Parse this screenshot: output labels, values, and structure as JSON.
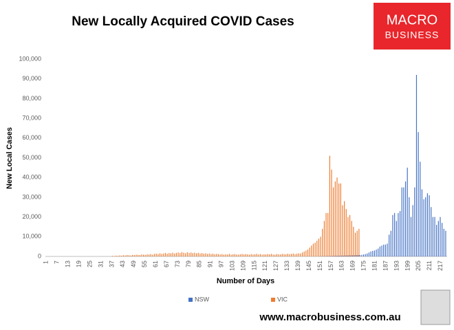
{
  "chart_data": {
    "type": "bar",
    "title": "New Locally Acquired COVID Cases",
    "logo": {
      "line1": "MACRO",
      "line2": "BUSINESS"
    },
    "footer": "www.macrobusiness.com.au",
    "y_label": "New Local Cases",
    "x_label": "Number of Days",
    "legend": "bottom",
    "grid": false,
    "ylim": [
      0,
      100000
    ],
    "yticks": [
      0,
      {
        "value": 10000,
        "label": "10,000"
      },
      {
        "value": 20000,
        "label": "20,000"
      },
      {
        "value": 30000,
        "label": "30,000"
      },
      {
        "value": 40000,
        "label": "40,000"
      },
      {
        "value": 50000,
        "label": "50,000"
      },
      {
        "value": 60000,
        "label": "60,000"
      },
      {
        "value": 70000,
        "label": "70,000"
      },
      {
        "value": 80000,
        "label": "80,000"
      },
      {
        "value": 90000,
        "label": "90,000"
      },
      {
        "value": 100000,
        "label": "100,000"
      }
    ],
    "categories": [
      1,
      null,
      null,
      null,
      null,
      null,
      7,
      null,
      null,
      null,
      null,
      null,
      13,
      null,
      null,
      null,
      null,
      null,
      19,
      null,
      null,
      null,
      null,
      null,
      25,
      null,
      null,
      null,
      null,
      null,
      31,
      null,
      null,
      null,
      null,
      null,
      37,
      null,
      null,
      null,
      null,
      null,
      43,
      null,
      null,
      null,
      null,
      null,
      49,
      null,
      null,
      null,
      null,
      null,
      55,
      null,
      null,
      null,
      null,
      null,
      61,
      null,
      null,
      null,
      null,
      null,
      67,
      null,
      null,
      null,
      null,
      null,
      73,
      null,
      null,
      null,
      null,
      null,
      79,
      null,
      null,
      null,
      null,
      null,
      85,
      null,
      null,
      null,
      null,
      null,
      91,
      null,
      null,
      null,
      null,
      null,
      97,
      null,
      null,
      null,
      null,
      null,
      103,
      null,
      null,
      null,
      null,
      null,
      109,
      null,
      null,
      null,
      null,
      null,
      115,
      null,
      null,
      null,
      null,
      null,
      121,
      null,
      null,
      null,
      null,
      null,
      127,
      null,
      null,
      null,
      null,
      null,
      133,
      null,
      null,
      null,
      null,
      null,
      139,
      null,
      null,
      null,
      null,
      null,
      145,
      null,
      null,
      null,
      null,
      null,
      151,
      null,
      null,
      null,
      null,
      null,
      157,
      null,
      null,
      null,
      null,
      null,
      163,
      null,
      null,
      null,
      null,
      null,
      169,
      null,
      null,
      null,
      null,
      null,
      175,
      null,
      null,
      null,
      null,
      null,
      181,
      null,
      null,
      null,
      null,
      null,
      187,
      null,
      null,
      null,
      null,
      null,
      193,
      null,
      null,
      null,
      null,
      null,
      199,
      null,
      null,
      null,
      null,
      null,
      205,
      null,
      null,
      null,
      null,
      null,
      211,
      null,
      null,
      null,
      null,
      null,
      217,
      null,
      null,
      null
    ],
    "series": [
      {
        "name": "NSW",
        "color": "#4472c4",
        "values": [
          0,
          0,
          0,
          0,
          0,
          0,
          0,
          0,
          0,
          0,
          0,
          0,
          0,
          0,
          0,
          0,
          0,
          0,
          0,
          0,
          0,
          0,
          0,
          0,
          0,
          0,
          0,
          0,
          0,
          0,
          0,
          0,
          0,
          0,
          0,
          0,
          0,
          0,
          0,
          0,
          0,
          0,
          0,
          0,
          0,
          0,
          0,
          0,
          0,
          0,
          0,
          0,
          0,
          0,
          0,
          0,
          0,
          0,
          0,
          0,
          0,
          0,
          0,
          0,
          0,
          0,
          0,
          0,
          0,
          0,
          0,
          0,
          0,
          0,
          0,
          0,
          0,
          0,
          0,
          0,
          0,
          0,
          0,
          0,
          0,
          0,
          0,
          0,
          0,
          0,
          0,
          0,
          0,
          0,
          0,
          0,
          0,
          0,
          0,
          0,
          0,
          0,
          0,
          0,
          0,
          0,
          0,
          0,
          0,
          0,
          0,
          0,
          0,
          0,
          0,
          0,
          0,
          0,
          0,
          0,
          0,
          0,
          0,
          0,
          0,
          0,
          0,
          0,
          0,
          0,
          0,
          0,
          0,
          0,
          0,
          0,
          0,
          0,
          0,
          0,
          0,
          0,
          0,
          0,
          0,
          0,
          0,
          0,
          0,
          0,
          100,
          100,
          150,
          150,
          200,
          200,
          250,
          250,
          300,
          300,
          350,
          350,
          400,
          400,
          450,
          450,
          500,
          500,
          550,
          550,
          600,
          600,
          700,
          800,
          1000,
          1200,
          1500,
          2000,
          2500,
          2800,
          3000,
          3500,
          4000,
          5000,
          5500,
          6000,
          6000,
          6500,
          11000,
          13000,
          21000,
          22000,
          18000,
          22000,
          23000,
          35000,
          35000,
          38000,
          45000,
          30000,
          20000,
          26000,
          35000,
          92000,
          63000,
          48000,
          34000,
          29000,
          30000,
          32000,
          31000,
          25000,
          20000,
          20000,
          16000,
          18000,
          20000,
          17000,
          14000,
          13000
        ]
      },
      {
        "name": "VIC",
        "color": "#ed7d31",
        "values": [
          0,
          0,
          0,
          0,
          0,
          0,
          0,
          0,
          0,
          0,
          0,
          0,
          0,
          0,
          0,
          0,
          0,
          0,
          0,
          0,
          0,
          0,
          0,
          0,
          0,
          0,
          0,
          0,
          0,
          0,
          0,
          0,
          0,
          0,
          0,
          0,
          300,
          200,
          400,
          300,
          500,
          400,
          600,
          500,
          700,
          600,
          500,
          800,
          700,
          900,
          800,
          700,
          1000,
          900,
          800,
          1100,
          1000,
          1200,
          900,
          1300,
          1400,
          1200,
          1600,
          1300,
          1500,
          1800,
          1400,
          1700,
          1600,
          1900,
          1500,
          1800,
          2000,
          1700,
          2200,
          1900,
          1600,
          2100,
          1800,
          2000,
          1700,
          1900,
          1600,
          1800,
          1500,
          1700,
          1400,
          1600,
          1300,
          1500,
          1200,
          1400,
          1100,
          1300,
          1200,
          1000,
          1200,
          900,
          1100,
          1000,
          1300,
          900,
          1100,
          1200,
          1000,
          900,
          1100,
          1300,
          1000,
          1200,
          1100,
          900,
          1200,
          1000,
          1100,
          1300,
          1000,
          1200,
          900,
          1100,
          1000,
          1200,
          1100,
          1300,
          1000,
          900,
          1200,
          1100,
          1000,
          1300,
          1200,
          1100,
          1400,
          1200,
          1300,
          1500,
          1200,
          1400,
          1600,
          1500,
          2000,
          2500,
          3000,
          3500,
          4500,
          5500,
          6500,
          7000,
          8000,
          9000,
          10000,
          14000,
          18000,
          22000,
          22000,
          51000,
          44000,
          35000,
          38000,
          40000,
          37000,
          37000,
          26000,
          28000,
          24000,
          20000,
          21000,
          18000,
          15000,
          12000,
          13000,
          14000,
          0,
          0,
          0,
          0,
          0,
          0,
          0,
          0,
          0,
          0,
          0,
          0,
          0,
          0,
          0,
          0,
          0,
          0,
          0,
          0,
          0,
          0,
          0,
          0,
          0,
          0,
          0,
          0,
          0,
          0,
          0,
          0,
          0,
          0,
          0,
          0,
          0,
          0,
          0,
          0,
          0,
          0,
          0,
          0,
          0,
          0,
          0,
          0
        ]
      }
    ]
  }
}
